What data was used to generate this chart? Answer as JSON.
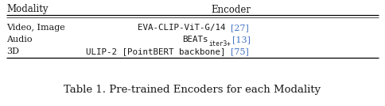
{
  "title": "Table 1. Pre-trained Encoders for each Modality",
  "bg_color": "#ffffff",
  "text_color": "#1a1a1a",
  "link_color": "#4472c4",
  "header_col1": "Modality",
  "header_col2": "Encoder",
  "row1_left": "Video, Image",
  "row1_right_main": "EVA-CLIP-ViT-G/14 ",
  "row1_right_ref": "[27]",
  "row2_left": "Audio",
  "row2_right_main1": "BEATs",
  "row2_right_sub": "iter3+",
  "row2_right_main2": " ",
  "row2_right_ref": "[13]",
  "row3_left": "3D",
  "row3_right_main": "ULIP-2 [PointBERT backbone] ",
  "row3_right_ref": "[75]",
  "header_fontsize": 8.5,
  "body_fontsize": 8.0,
  "mono_fontsize": 7.8,
  "title_fontsize": 9.5
}
